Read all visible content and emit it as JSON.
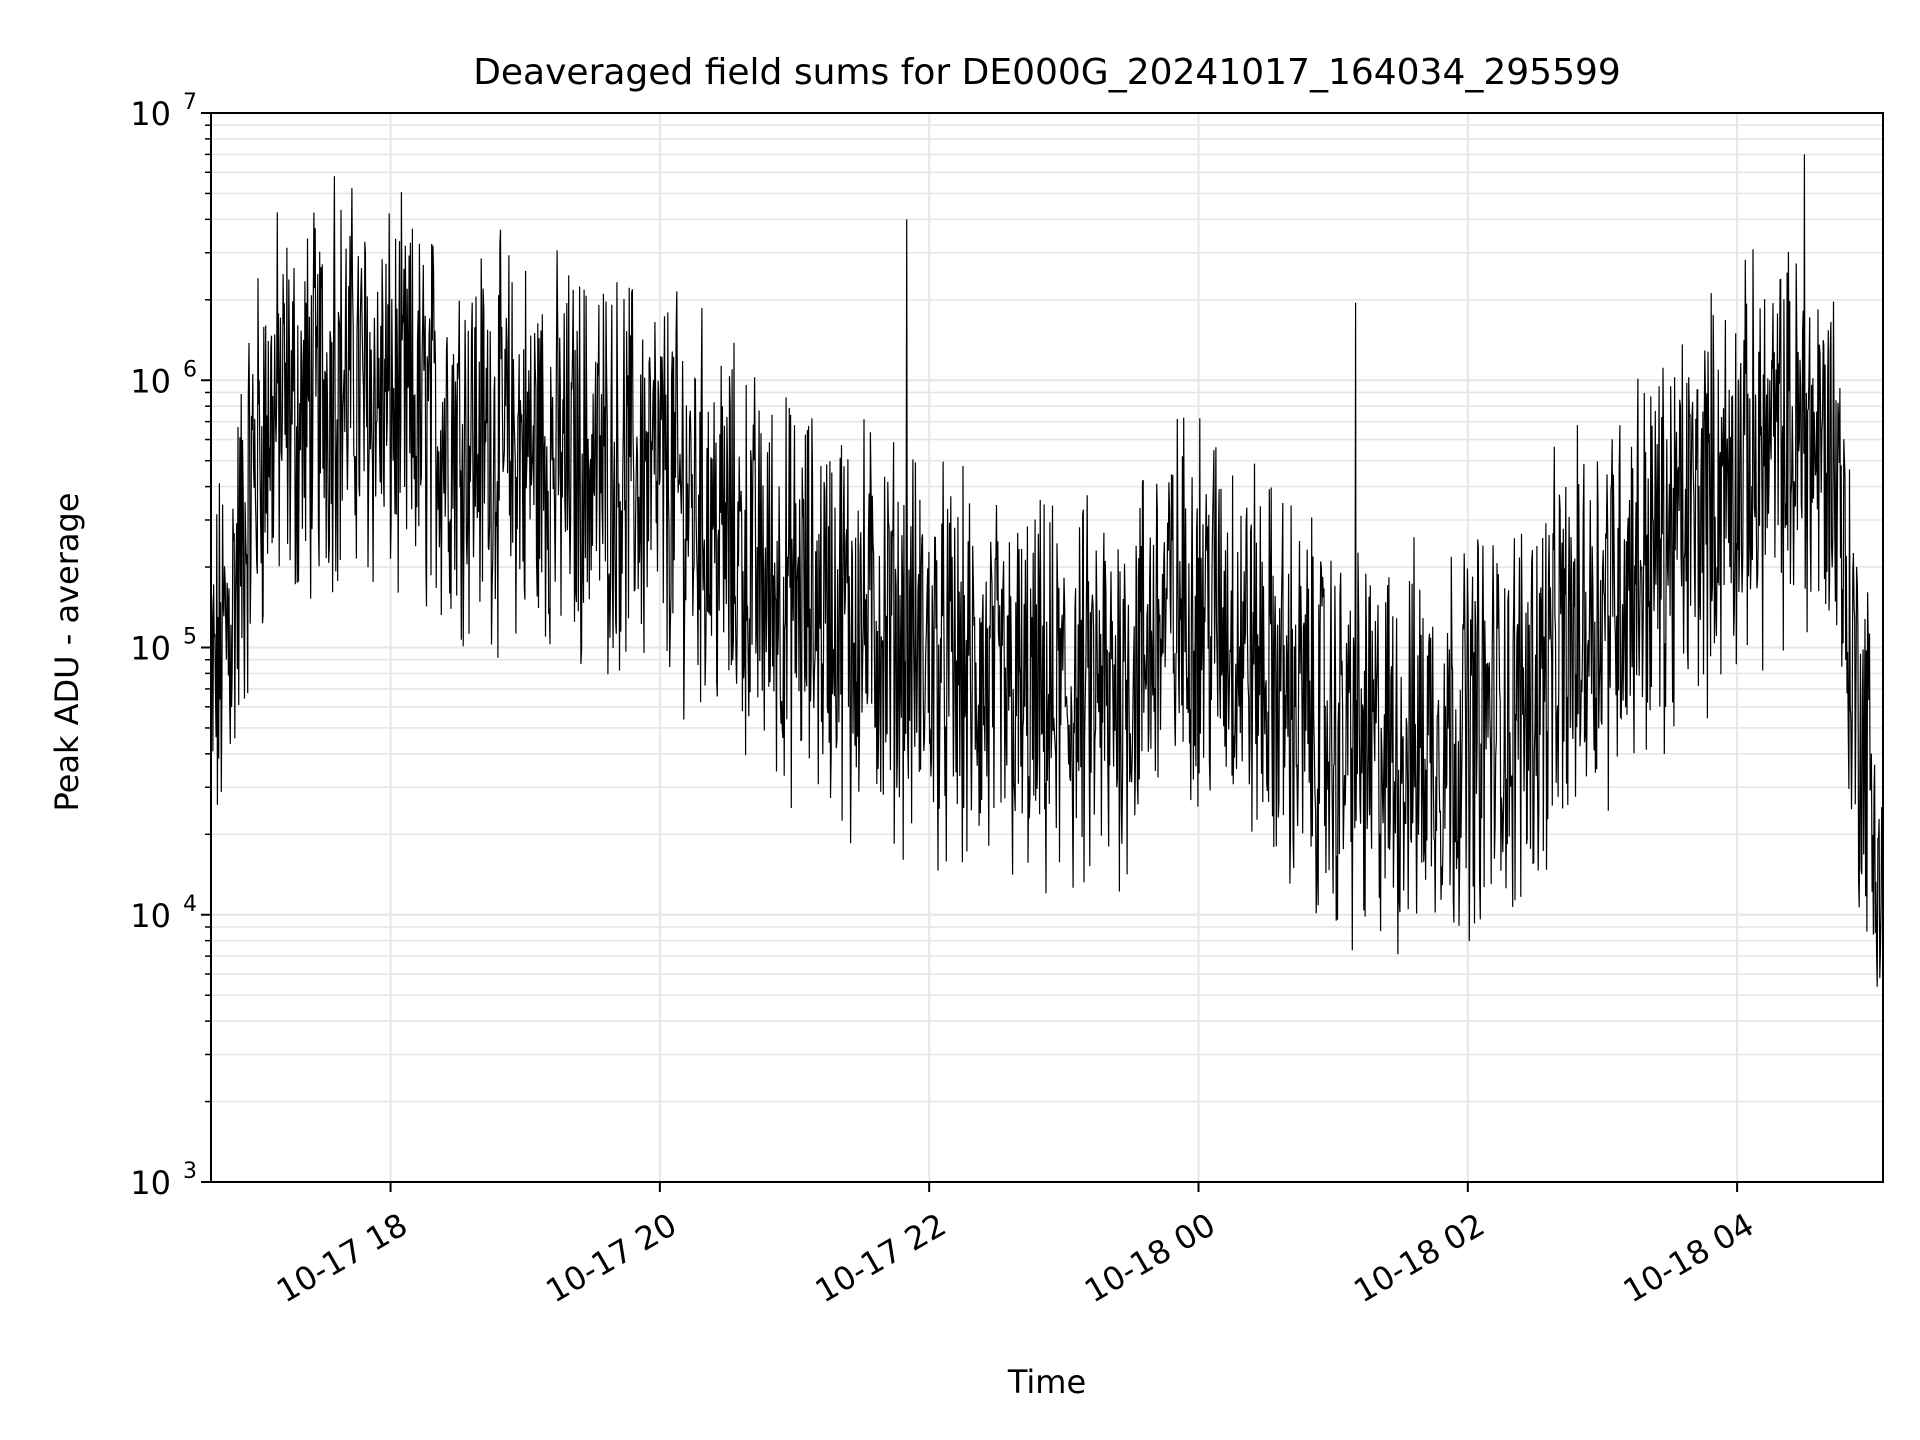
{
  "chart_data": {
    "type": "line",
    "title": "Deaveraged field sums for DE000G_20241017_164034_295599",
    "xlabel": "Time",
    "ylabel": "Peak ADU - average",
    "yscale": "log",
    "ylim": [
      1000,
      10000000
    ],
    "xlim": [
      "2024-10-17 16:40",
      "2024-10-18 05:05"
    ],
    "grid": true,
    "line_color": "#000000",
    "grid_color": "#e6e6e6",
    "y_ticks": [
      {
        "value": 1000,
        "base": "10",
        "exp": "3"
      },
      {
        "value": 10000,
        "base": "10",
        "exp": "4"
      },
      {
        "value": 100000,
        "base": "10",
        "exp": "5"
      },
      {
        "value": 1000000,
        "base": "10",
        "exp": "6"
      },
      {
        "value": 10000000,
        "base": "10",
        "exp": "7"
      }
    ],
    "x_ticks": [
      {
        "label": "10-17 18",
        "time": "2024-10-17 18:00"
      },
      {
        "label": "10-17 20",
        "time": "2024-10-17 20:00"
      },
      {
        "label": "10-17 22",
        "time": "2024-10-17 22:00"
      },
      {
        "label": "10-18 00",
        "time": "2024-10-18 00:00"
      },
      {
        "label": "10-18 02",
        "time": "2024-10-18 02:00"
      },
      {
        "label": "10-18 04",
        "time": "2024-10-18 04:00"
      }
    ],
    "series": [
      {
        "points": [
          [
            "2024-10-17 16:40",
            60000
          ],
          [
            "2024-10-17 16:50",
            150000
          ],
          [
            "2024-10-17 17:00",
            500000
          ],
          [
            "2024-10-17 17:10",
            800000
          ],
          [
            "2024-10-17 17:20",
            700000
          ],
          [
            "2024-10-17 17:30",
            900000
          ],
          [
            "2024-10-17 17:40",
            1000000
          ],
          [
            "2024-10-17 17:50",
            900000
          ],
          [
            "2024-10-17 18:00",
            800000
          ],
          [
            "2024-10-17 18:15",
            700000
          ],
          [
            "2024-10-17 18:30",
            650000
          ],
          [
            "2024-10-17 18:45",
            600000
          ],
          [
            "2024-10-17 19:00",
            550000
          ],
          [
            "2024-10-17 19:15",
            500000
          ],
          [
            "2024-10-17 19:30",
            480000
          ],
          [
            "2024-10-17 19:45",
            450000
          ],
          [
            "2024-10-17 20:00",
            420000
          ],
          [
            "2024-10-17 20:15",
            350000
          ],
          [
            "2024-10-17 20:30",
            250000
          ],
          [
            "2024-10-17 20:45",
            180000
          ],
          [
            "2024-10-17 21:00",
            150000
          ],
          [
            "2024-10-17 21:15",
            140000
          ],
          [
            "2024-10-17 21:30",
            130000
          ],
          [
            "2024-10-17 21:45",
            110000
          ],
          [
            "2024-10-17 22:00",
            90000
          ],
          [
            "2024-10-17 22:15",
            75000
          ],
          [
            "2024-10-17 22:30",
            65000
          ],
          [
            "2024-10-17 22:45",
            60000
          ],
          [
            "2024-10-17 23:00",
            60000
          ],
          [
            "2024-10-17 23:15",
            65000
          ],
          [
            "2024-10-17 23:30",
            80000
          ],
          [
            "2024-10-17 23:45",
            130000
          ],
          [
            "2024-10-18 00:00",
            150000
          ],
          [
            "2024-10-18 00:15",
            120000
          ],
          [
            "2024-10-18 00:30",
            80000
          ],
          [
            "2024-10-18 00:45",
            60000
          ],
          [
            "2024-10-18 01:00",
            45000
          ],
          [
            "2024-10-18 01:15",
            40000
          ],
          [
            "2024-10-18 01:30",
            40000
          ],
          [
            "2024-10-18 01:45",
            45000
          ],
          [
            "2024-10-18 02:00",
            50000
          ],
          [
            "2024-10-18 02:15",
            55000
          ],
          [
            "2024-10-18 02:30",
            70000
          ],
          [
            "2024-10-18 02:45",
            100000
          ],
          [
            "2024-10-18 03:00",
            150000
          ],
          [
            "2024-10-18 03:15",
            200000
          ],
          [
            "2024-10-18 03:30",
            250000
          ],
          [
            "2024-10-18 03:45",
            350000
          ],
          [
            "2024-10-18 04:00",
            450000
          ],
          [
            "2024-10-18 04:15",
            550000
          ],
          [
            "2024-10-18 04:30",
            600000
          ],
          [
            "2024-10-18 04:45",
            500000
          ],
          [
            "2024-10-18 04:50",
            100000
          ],
          [
            "2024-10-18 05:00",
            30000
          ],
          [
            "2024-10-18 05:05",
            8000
          ]
        ],
        "peaks": [
          [
            "2024-10-17 17:35",
            5800000
          ],
          [
            "2024-10-17 21:50",
            4000000
          ],
          [
            "2024-10-18 01:10",
            1950000
          ],
          [
            "2024-10-18 04:30",
            7000000
          ],
          [
            "2024-10-18 02:20",
            10700
          ],
          [
            "2024-10-18 01:00",
            12000
          ],
          [
            "2024-10-17 21:25",
            18500
          ],
          [
            "2024-10-17 23:20",
            18000
          ]
        ]
      }
    ]
  }
}
